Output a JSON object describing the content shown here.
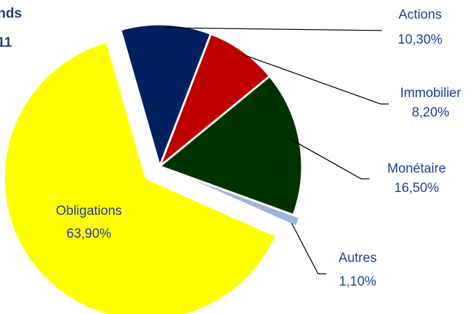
{
  "chart_data": {
    "type": "pie",
    "title": "nds",
    "subtitle": "11",
    "categories": [
      "Actions",
      "Immobilier",
      "Monétaire",
      "Autres",
      "Obligations"
    ],
    "values": [
      10.3,
      8.2,
      16.5,
      1.1,
      63.9
    ],
    "value_labels": [
      "10,30%",
      "8,20%",
      "16,50%",
      "1,10%",
      "63,90%"
    ],
    "colors": [
      "#002060",
      "#c00000",
      "#003300",
      "#9fb4dc",
      "#ffff00"
    ]
  }
}
